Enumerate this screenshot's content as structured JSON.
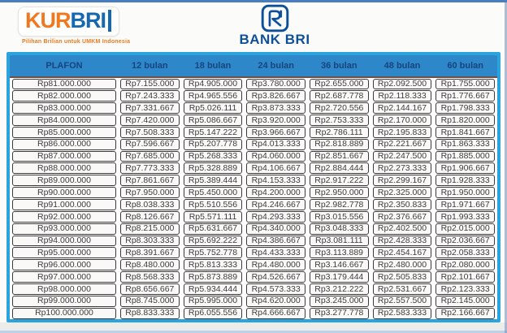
{
  "header": {
    "kur_logo": {
      "kur": "KUR",
      "bri": "BRI"
    },
    "tagline": "Pilihan Brilian untuk UMKM Indonesia",
    "bank_logo_text": "BANK BRI"
  },
  "colors": {
    "kur_orange": "#f0791f",
    "bri_blue": "#1668b0",
    "bank_navy": "#0e4f9b",
    "tagline_orange": "#e87b22",
    "table_frame_blue": "#2ba4dd",
    "table_header_bg": "#2e87c8",
    "table_header_text": "#17457f",
    "cell_border": "#3a3a3a",
    "cell_text": "#3c3c3c"
  },
  "chart_data": {
    "type": "table",
    "columns": [
      "PLAFON",
      "12 bulan",
      "18 bulan",
      "24 bulan",
      "36 bulan",
      "48 bulan",
      "60 bulan"
    ],
    "rows": [
      [
        "Rp81.000.000",
        "Rp7.155.000",
        "Rp4.905.000",
        "Rp3.780.000",
        "Rp2.655.000",
        "Rp2.092.500",
        "Rp1.755.000"
      ],
      [
        "Rp82.000.000",
        "Rp7.243.333",
        "Rp4.965.556",
        "Rp3.826.667",
        "Rp2.687.778",
        "Rp2.118.333",
        "Rp1.776.667"
      ],
      [
        "Rp83.000.000",
        "Rp7.331.667",
        "Rp5.026.111",
        "Rp3.873.333",
        "Rp2.720.556",
        "Rp2.144.167",
        "Rp1.798.333"
      ],
      [
        "Rp84.000.000",
        "Rp7.420.000",
        "Rp5.086.667",
        "Rp3.920.000",
        "Rp2.753.333",
        "Rp2.170.000",
        "Rp1.820.000"
      ],
      [
        "Rp85.000.000",
        "Rp7.508.333",
        "Rp5.147.222",
        "Rp3.966.667",
        "Rp2.786.111",
        "Rp2.195.833",
        "Rp1.841.667"
      ],
      [
        "Rp86.000.000",
        "Rp7.596.667",
        "Rp5.207.778",
        "Rp4.013.333",
        "Rp2.818.889",
        "Rp2.221.667",
        "Rp1.863.333"
      ],
      [
        "Rp87.000.000",
        "Rp7.685.000",
        "Rp5.268.333",
        "Rp4.060.000",
        "Rp2.851.667",
        "Rp2.247.500",
        "Rp1.885.000"
      ],
      [
        "Rp88.000.000",
        "Rp7.773.333",
        "Rp5.328.889",
        "Rp4.106.667",
        "Rp2.884.444",
        "Rp2.273.333",
        "Rp1.906.667"
      ],
      [
        "Rp89.000.000",
        "Rp7.861.667",
        "Rp5.389.444",
        "Rp4.153.333",
        "Rp2.917.222",
        "Rp2.299.167",
        "Rp1.928.333"
      ],
      [
        "Rp90.000.000",
        "Rp7.950.000",
        "Rp5.450.000",
        "Rp4.200.000",
        "Rp2.950.000",
        "Rp2.325.000",
        "Rp1.950.000"
      ],
      [
        "Rp91.000.000",
        "Rp8.038.333",
        "Rp5.510.556",
        "Rp4.246.667",
        "Rp2.982.778",
        "Rp2.350.833",
        "Rp1.971.667"
      ],
      [
        "Rp92.000.000",
        "Rp8.126.667",
        "Rp5.571.111",
        "Rp4.293.333",
        "Rp3.015.556",
        "Rp2.376.667",
        "Rp1.993.333"
      ],
      [
        "Rp93.000.000",
        "Rp8.215.000",
        "Rp5.631.667",
        "Rp4.340.000",
        "Rp3.048.333",
        "Rp2.402.500",
        "Rp2.015.000"
      ],
      [
        "Rp94.000.000",
        "Rp8.303.333",
        "Rp5.692.222",
        "Rp4.386.667",
        "Rp3.081.111",
        "Rp2.428.333",
        "Rp2.036.667"
      ],
      [
        "Rp95.000.000",
        "Rp8.391.667",
        "Rp5.752.778",
        "Rp4.433.333",
        "Rp3.113.889",
        "Rp2.454.167",
        "Rp2.058.333"
      ],
      [
        "Rp96.000.000",
        "Rp8.480.000",
        "Rp5.813.333",
        "Rp4.480.000",
        "Rp3.146.667",
        "Rp2.480.000",
        "Rp2.080.000"
      ],
      [
        "Rp97.000.000",
        "Rp8.568.333",
        "Rp5.873.889",
        "Rp4.526.667",
        "Rp3.179.444",
        "Rp2.505.833",
        "Rp2.101.667"
      ],
      [
        "Rp98.000.000",
        "Rp8.656.667",
        "Rp5.934.444",
        "Rp4.573.333",
        "Rp3.212.222",
        "Rp2.531.667",
        "Rp2.123.333"
      ],
      [
        "Rp99.000.000",
        "Rp8.745.000",
        "Rp5.995.000",
        "Rp4.620.000",
        "Rp3.245.000",
        "Rp2.557.500",
        "Rp2.145.000"
      ],
      [
        "Rp100.000.000",
        "Rp8.833.333",
        "Rp6.055.556",
        "Rp4.666.667",
        "Rp3.277.778",
        "Rp2.583.333",
        "Rp2.166.667"
      ]
    ]
  }
}
